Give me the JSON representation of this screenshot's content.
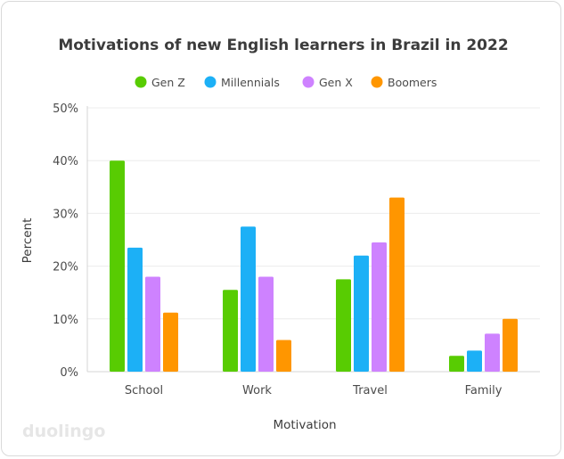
{
  "brand": "duolingo",
  "chart_data": {
    "type": "bar",
    "title": "Motivations of new English learners in Brazil in 2022",
    "xlabel": "Motivation",
    "ylabel": "Percent",
    "ylim": [
      0,
      50
    ],
    "yticks": [
      "0%",
      "10%",
      "20%",
      "30%",
      "40%",
      "50%"
    ],
    "ytick_values": [
      0,
      10,
      20,
      30,
      40,
      50
    ],
    "grid": true,
    "legend_position": "top",
    "categories": [
      "School",
      "Work",
      "Travel",
      "Family"
    ],
    "series": [
      {
        "name": "Gen Z",
        "color": "#58cc02",
        "values": [
          40,
          15.5,
          17.5,
          3
        ]
      },
      {
        "name": "Millennials",
        "color": "#1cb0f6",
        "values": [
          23.5,
          27.5,
          22,
          4
        ]
      },
      {
        "name": "Gen X",
        "color": "#ce82ff",
        "values": [
          18,
          18,
          24.5,
          7.2
        ]
      },
      {
        "name": "Boomers",
        "color": "#ff9600",
        "values": [
          11.2,
          6,
          33,
          10
        ]
      }
    ]
  }
}
